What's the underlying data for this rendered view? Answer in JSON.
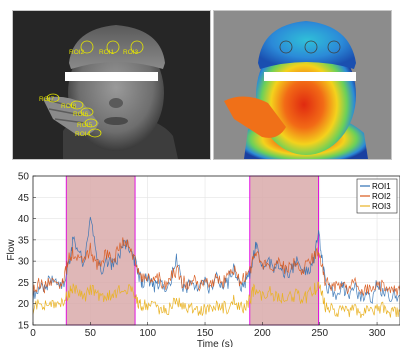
{
  "images": {
    "thermal_rois": [
      {
        "label": "ROI2"
      },
      {
        "label": "ROI1"
      },
      {
        "label": "ROI3"
      },
      {
        "label": "ROI7"
      },
      {
        "label": "ROI8"
      },
      {
        "label": "ROI6"
      },
      {
        "label": "ROI5"
      },
      {
        "label": "ROI4"
      }
    ]
  },
  "chart_data": {
    "type": "line",
    "title": "",
    "xlabel": "Time (s)",
    "ylabel": "Flow",
    "xlim": [
      0,
      320
    ],
    "ylim": [
      15,
      50
    ],
    "xticks": [
      0,
      50,
      100,
      150,
      200,
      250,
      300
    ],
    "yticks": [
      15,
      20,
      25,
      30,
      35,
      40,
      45,
      50
    ],
    "grid": true,
    "legend_position": "top-right",
    "shaded_regions": [
      {
        "start": 29,
        "end": 89,
        "color": "#d9aaaa",
        "edge_color": "#e000e0"
      },
      {
        "start": 189,
        "end": 249,
        "color": "#d9aaaa",
        "edge_color": "#e000e0"
      }
    ],
    "series": [
      {
        "name": "ROI1",
        "color": "#2f6fb3",
        "x": [
          0,
          5,
          10,
          15,
          20,
          25,
          29,
          32,
          35,
          40,
          45,
          50,
          55,
          60,
          65,
          70,
          75,
          80,
          85,
          89,
          92,
          95,
          100,
          105,
          110,
          115,
          120,
          125,
          130,
          135,
          140,
          145,
          150,
          155,
          160,
          165,
          170,
          175,
          180,
          185,
          189,
          192,
          195,
          200,
          205,
          210,
          215,
          220,
          225,
          230,
          235,
          240,
          245,
          249,
          252,
          255,
          260,
          265,
          270,
          275,
          280,
          285,
          290,
          295,
          300,
          305,
          310,
          315,
          320
        ],
        "values": [
          22,
          24,
          23,
          26,
          25,
          24,
          27,
          30,
          35,
          32,
          29,
          41,
          31,
          28,
          30,
          29,
          31,
          34,
          33,
          30,
          27,
          25,
          26,
          24,
          25,
          23,
          25,
          31,
          24,
          24,
          25,
          23,
          25,
          23,
          26,
          24,
          25,
          29,
          24,
          25,
          27,
          31,
          34,
          29,
          30,
          28,
          29,
          27,
          28,
          30,
          27,
          28,
          30,
          37,
          31,
          24,
          23,
          22,
          24,
          22,
          24,
          21,
          22,
          21,
          25,
          23,
          22,
          22,
          22
        ]
      },
      {
        "name": "ROI2",
        "color": "#d8581b",
        "x": [
          0,
          5,
          10,
          15,
          20,
          25,
          29,
          32,
          35,
          40,
          45,
          50,
          55,
          60,
          65,
          70,
          75,
          80,
          85,
          89,
          92,
          95,
          100,
          105,
          110,
          115,
          120,
          125,
          130,
          135,
          140,
          145,
          150,
          155,
          160,
          165,
          170,
          175,
          180,
          185,
          189,
          192,
          195,
          200,
          205,
          210,
          215,
          220,
          225,
          230,
          235,
          240,
          245,
          249,
          252,
          255,
          260,
          265,
          270,
          275,
          280,
          285,
          290,
          295,
          300,
          305,
          310,
          315,
          320
        ],
        "values": [
          23,
          25,
          24,
          26,
          24,
          25,
          28,
          31,
          32,
          30,
          30,
          33,
          29,
          30,
          32,
          30,
          33,
          35,
          32,
          31,
          27,
          26,
          26,
          25,
          26,
          24,
          26,
          28,
          25,
          25,
          26,
          24,
          26,
          24,
          26,
          25,
          26,
          28,
          25,
          26,
          28,
          30,
          31,
          29,
          30,
          29,
          30,
          28,
          29,
          30,
          28,
          29,
          31,
          33,
          29,
          25,
          24,
          24,
          25,
          23,
          25,
          22,
          24,
          23,
          25,
          24,
          23,
          23,
          23
        ]
      },
      {
        "name": "ROI3",
        "color": "#e9b224",
        "x": [
          0,
          5,
          10,
          15,
          20,
          25,
          29,
          32,
          35,
          40,
          45,
          50,
          55,
          60,
          65,
          70,
          75,
          80,
          85,
          89,
          92,
          95,
          100,
          105,
          110,
          115,
          120,
          125,
          130,
          135,
          140,
          145,
          150,
          155,
          160,
          165,
          170,
          175,
          180,
          185,
          189,
          192,
          195,
          200,
          205,
          210,
          215,
          220,
          225,
          230,
          235,
          240,
          245,
          249,
          252,
          255,
          260,
          265,
          270,
          275,
          280,
          285,
          290,
          295,
          300,
          305,
          310,
          315,
          320
        ],
        "values": [
          19,
          20,
          19,
          20,
          19,
          20,
          22,
          23,
          24,
          22,
          21,
          24,
          22,
          21,
          22,
          21,
          23,
          24,
          23,
          22,
          20,
          19,
          20,
          19,
          19,
          18,
          19,
          21,
          19,
          19,
          19,
          18,
          19,
          18,
          20,
          19,
          19,
          21,
          19,
          19,
          21,
          23,
          24,
          22,
          23,
          22,
          22,
          21,
          22,
          22,
          21,
          22,
          23,
          25,
          22,
          19,
          19,
          18,
          19,
          18,
          19,
          18,
          18,
          18,
          19,
          19,
          18,
          18,
          18
        ]
      }
    ]
  }
}
